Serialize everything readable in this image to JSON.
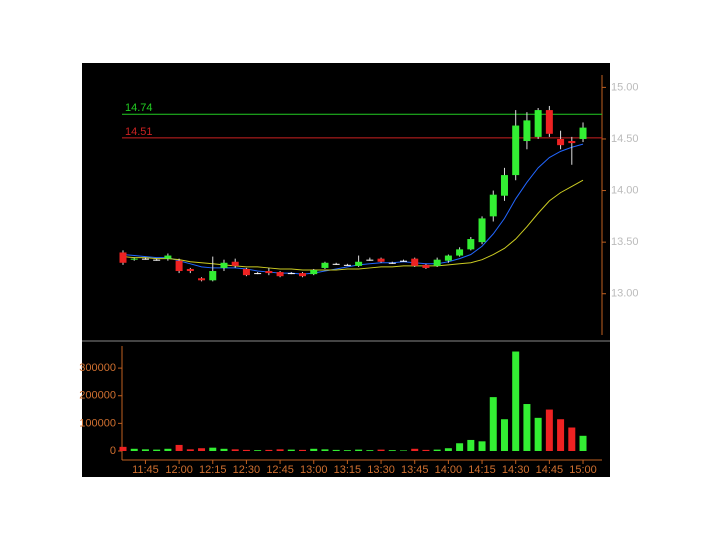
{
  "chart_data": [
    {
      "type": "candlestick",
      "open": [
        13.4,
        13.33,
        13.34,
        13.33,
        13.34,
        13.32,
        13.24,
        13.15,
        13.13,
        13.25,
        13.31,
        13.24,
        13.2,
        13.22,
        13.21,
        13.2,
        13.2,
        13.19,
        13.25,
        13.29,
        13.28,
        13.27,
        13.33,
        13.34,
        13.3,
        13.32,
        13.34,
        13.28,
        13.27,
        13.32,
        13.37,
        13.43,
        13.5,
        13.75,
        13.95,
        14.15,
        14.48,
        14.52,
        14.78,
        14.5,
        14.48,
        14.5
      ],
      "high": [
        13.42,
        13.35,
        13.35,
        13.34,
        13.39,
        13.34,
        13.25,
        13.16,
        13.36,
        13.33,
        13.34,
        13.25,
        13.21,
        13.25,
        13.22,
        13.21,
        13.21,
        13.24,
        13.31,
        13.3,
        13.29,
        13.37,
        13.35,
        13.35,
        13.31,
        13.33,
        13.35,
        13.29,
        13.35,
        13.38,
        13.45,
        13.55,
        13.75,
        14.0,
        14.22,
        14.78,
        14.76,
        14.8,
        14.82,
        14.58,
        14.52,
        14.66
      ],
      "low": [
        13.28,
        13.32,
        13.33,
        13.32,
        13.32,
        13.2,
        13.2,
        13.12,
        13.12,
        13.22,
        13.25,
        13.17,
        13.19,
        13.18,
        13.16,
        13.19,
        13.16,
        13.18,
        13.24,
        13.28,
        13.27,
        13.26,
        13.32,
        13.3,
        13.29,
        13.31,
        13.26,
        13.24,
        13.26,
        13.3,
        13.36,
        13.42,
        13.48,
        13.7,
        13.9,
        14.1,
        14.4,
        14.5,
        14.52,
        14.4,
        14.25,
        14.47
      ],
      "close": [
        13.3,
        13.34,
        13.34,
        13.33,
        13.37,
        13.22,
        13.22,
        13.13,
        13.22,
        13.3,
        13.27,
        13.18,
        13.2,
        13.2,
        13.17,
        13.2,
        13.17,
        13.23,
        13.3,
        13.29,
        13.28,
        13.31,
        13.33,
        13.31,
        13.3,
        13.32,
        13.27,
        13.25,
        13.33,
        13.37,
        13.43,
        13.53,
        13.73,
        13.96,
        14.15,
        14.63,
        14.68,
        14.78,
        14.55,
        14.44,
        14.46,
        14.61
      ],
      "up_color": "#33ee33",
      "down_color": "#ee2222",
      "doji_color": "#ffffff",
      "moving_averages": [
        {
          "color": "#2266ff",
          "values": [
            13.38,
            13.37,
            13.36,
            13.35,
            13.35,
            13.32,
            13.29,
            13.26,
            13.25,
            13.25,
            13.25,
            13.24,
            13.22,
            13.21,
            13.2,
            13.2,
            13.19,
            13.2,
            13.22,
            13.24,
            13.26,
            13.28,
            13.29,
            13.3,
            13.3,
            13.31,
            13.3,
            13.29,
            13.29,
            13.31,
            13.34,
            13.38,
            13.46,
            13.58,
            13.73,
            13.92,
            14.08,
            14.22,
            14.32,
            14.38,
            14.42,
            14.45
          ]
        },
        {
          "color": "#cccc22",
          "values": [
            13.36,
            13.35,
            13.35,
            13.34,
            13.34,
            13.33,
            13.31,
            13.3,
            13.29,
            13.28,
            13.27,
            13.26,
            13.26,
            13.25,
            13.24,
            13.24,
            13.23,
            13.23,
            13.23,
            13.23,
            13.24,
            13.24,
            13.25,
            13.26,
            13.26,
            13.27,
            13.27,
            13.27,
            13.27,
            13.28,
            13.29,
            13.3,
            13.33,
            13.38,
            13.44,
            13.53,
            13.65,
            13.78,
            13.9,
            13.98,
            14.04,
            14.1
          ]
        }
      ],
      "levels": [
        {
          "value": 14.74,
          "color": "#22cc22"
        },
        {
          "value": 14.51,
          "color": "#cc2222"
        }
      ],
      "ylim": [
        12.6,
        15.12
      ],
      "yticks": [
        {
          "value": 13,
          "label": "13.00"
        },
        {
          "value": 13.5,
          "label": "13.50"
        },
        {
          "value": 14,
          "label": "14.00"
        },
        {
          "value": 14.5,
          "label": "14.50"
        },
        {
          "value": 15,
          "label": "15.00"
        }
      ]
    },
    {
      "type": "bar",
      "categories": [
        null,
        null,
        "11:45",
        null,
        null,
        "12:00",
        null,
        null,
        "12:15",
        null,
        null,
        "12:30",
        null,
        null,
        "12:45",
        null,
        null,
        "13:00",
        null,
        null,
        "13:15",
        null,
        null,
        "13:30",
        null,
        null,
        "13:45",
        null,
        null,
        "14:00",
        null,
        null,
        "14:15",
        null,
        null,
        "14:30",
        null,
        null,
        "14:45",
        null,
        null,
        "15:00"
      ],
      "values": [
        15000,
        8000,
        6000,
        5000,
        8000,
        22000,
        6000,
        10000,
        12000,
        8000,
        6000,
        4000,
        3000,
        4000,
        6000,
        5000,
        4000,
        8000,
        6000,
        4000,
        3000,
        5000,
        3000,
        5000,
        3000,
        2000,
        8000,
        4000,
        5000,
        10000,
        28000,
        40000,
        35000,
        195000,
        115000,
        360000,
        170000,
        120000,
        150000,
        115000,
        85000,
        55000
      ],
      "ylim": [
        0,
        380000
      ],
      "yticks": [
        0,
        100000,
        200000,
        300000
      ]
    }
  ]
}
